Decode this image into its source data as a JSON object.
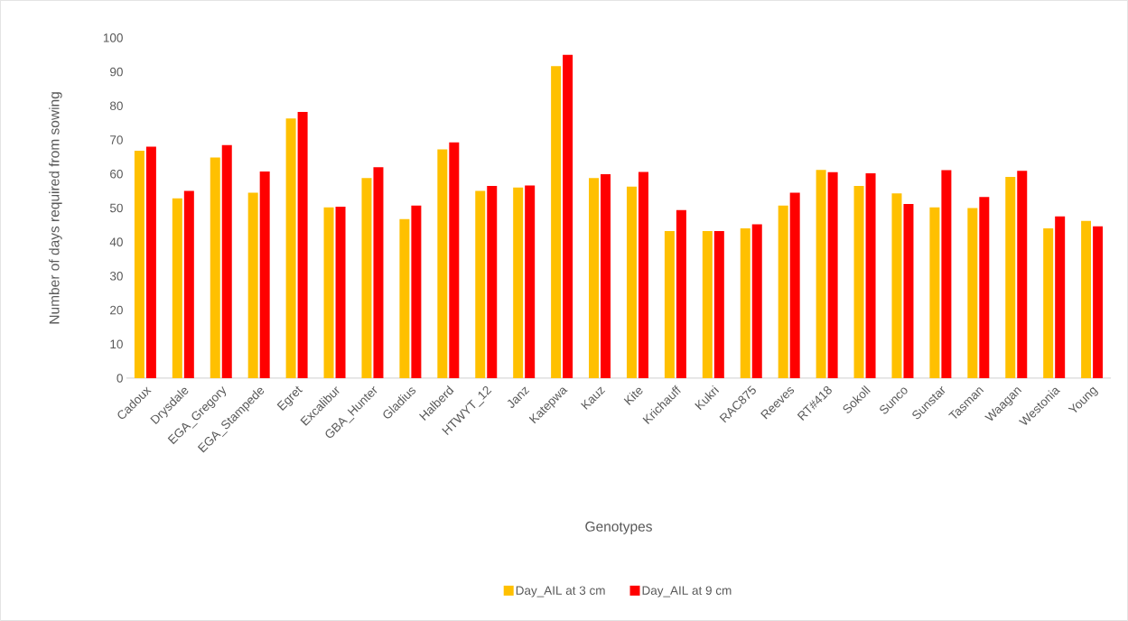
{
  "chart_data": {
    "type": "bar",
    "categories": [
      "Cadoux",
      "Drysdale",
      "EGA_Gregory",
      "EGA_Stampede",
      "Egret",
      "Excalibur",
      "GBA_Hunter",
      "Gladius",
      "Halberd",
      "HTWYT_12",
      "Janz",
      "Katepwa",
      "Kauz",
      "Kite",
      "Krichauff",
      "Kukri",
      "RAC875",
      "Reeves",
      "RT#418",
      "Sokoll",
      "Sunco",
      "Sunstar",
      "Tasman",
      "Waagan",
      "Westonia",
      "Young"
    ],
    "series": [
      {
        "name": "Day_AIL at 3 cm",
        "color": "#ffc000",
        "values": [
          66.8,
          52.8,
          64.8,
          54.5,
          76.3,
          50.2,
          58.8,
          46.7,
          67.2,
          55.0,
          56.0,
          91.7,
          58.8,
          56.3,
          43.2,
          43.2,
          44.0,
          50.7,
          61.2,
          56.5,
          54.3,
          50.2,
          50.0,
          59.1,
          44.0,
          46.2
        ]
      },
      {
        "name": "Day_AIL at 9 cm",
        "color": "#ff0000",
        "values": [
          68.0,
          55.0,
          68.5,
          60.7,
          78.2,
          50.4,
          62.0,
          50.7,
          69.3,
          56.5,
          56.6,
          95.0,
          59.9,
          60.6,
          49.4,
          43.2,
          45.2,
          54.5,
          60.5,
          60.2,
          51.2,
          61.1,
          53.2,
          60.9,
          47.5,
          44.6
        ]
      }
    ],
    "xlabel": "Genotypes",
    "ylabel": "Number of days required from sowing",
    "ylim": [
      0,
      100
    ],
    "yticks": [
      0,
      10,
      20,
      30,
      40,
      50,
      60,
      70,
      80,
      90,
      100
    ],
    "legend": "bottom"
  }
}
